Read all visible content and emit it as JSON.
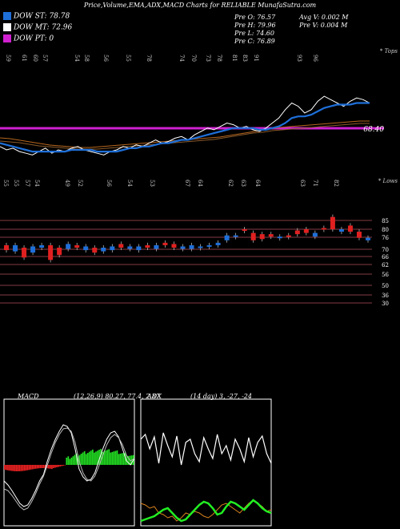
{
  "header": {
    "title": "Price,Volume,EMA,ADX,MACD Charts for RELIABLE MunafaSutra.com"
  },
  "legend": [
    {
      "label": "DOW ST: 78.78",
      "color": "#1e6fd9"
    },
    {
      "label": "DOW MT: 72.96",
      "color": "#ffffff"
    },
    {
      "label": "DOW PT: 0",
      "color": "#d020d0"
    }
  ],
  "ohlc": {
    "open": "Pre   O: 76.57",
    "high": "Pre   H: 79.96",
    "low": "Pre   L: 74.60",
    "close": "Pre   C: 76.89",
    "avg_vol": "Avg V: 0.002  M",
    "pre_vol": "Pre   V: 0.004  M"
  },
  "chart_data": [
    {
      "type": "line",
      "name": "price-ema",
      "title": "",
      "top_label_right": "* Tops",
      "top_labels": [
        "59",
        "61",
        "60",
        "57",
        "54",
        "58",
        "56",
        "55",
        "78",
        "74",
        "70",
        "73",
        "78",
        "81",
        "83",
        "91",
        "93",
        "96"
      ],
      "last_value_label": "68.40",
      "pt_line_value": 68.4,
      "series": [
        {
          "name": "Price",
          "color": "#ffffff",
          "values": [
            58,
            56,
            57,
            55,
            54,
            53,
            55,
            57,
            54,
            56,
            55,
            57,
            58,
            56,
            55,
            54,
            53,
            55,
            56,
            58,
            57,
            59,
            58,
            60,
            62,
            60,
            61,
            63,
            64,
            62,
            65,
            67,
            69,
            68,
            70,
            72,
            71,
            69,
            70,
            68,
            67,
            69,
            72,
            75,
            80,
            84,
            82,
            78,
            80,
            85,
            88,
            86,
            84,
            82,
            85,
            87,
            86,
            84
          ]
        },
        {
          "name": "EMA 5",
          "color": "#1e6fd9",
          "values": [
            60,
            59,
            58,
            57,
            56,
            55,
            55,
            55,
            55,
            55,
            55,
            56,
            56,
            56,
            56,
            55,
            55,
            55,
            55,
            56,
            57,
            57,
            58,
            58,
            59,
            60,
            60,
            61,
            62,
            62,
            63,
            64,
            65,
            66,
            67,
            68,
            69,
            69,
            69,
            69,
            68,
            68,
            69,
            70,
            72,
            75,
            76,
            76,
            77,
            79,
            81,
            82,
            83,
            83,
            83,
            84,
            84,
            84
          ]
        }
      ]
    },
    {
      "type": "bar",
      "name": "candles",
      "bottom_label_right": "* Lows",
      "low_labels": [
        "55",
        "55",
        "57",
        "54",
        "49",
        "52",
        "56",
        "54",
        "53",
        "67",
        "64",
        "62",
        "63",
        "64",
        "63",
        "71",
        "82"
      ],
      "levels": [
        85,
        80,
        76,
        70,
        66,
        62,
        56,
        50,
        36,
        30
      ],
      "candles": [
        {
          "o": 68,
          "c": 72,
          "up": false
        },
        {
          "o": 67,
          "c": 72,
          "up": true
        },
        {
          "o": 70,
          "c": 62,
          "up": false
        },
        {
          "o": 66,
          "c": 71,
          "up": true
        },
        {
          "o": 70,
          "c": 72,
          "up": true
        },
        {
          "o": 72,
          "c": 60,
          "up": false
        },
        {
          "o": 64,
          "c": 70,
          "up": false
        },
        {
          "o": 69,
          "c": 73,
          "up": true
        },
        {
          "o": 72,
          "c": 70,
          "up": false
        },
        {
          "o": 71,
          "c": 68,
          "up": true
        },
        {
          "o": 70,
          "c": 66,
          "up": false
        },
        {
          "o": 67,
          "c": 70,
          "up": true
        },
        {
          "o": 68,
          "c": 71,
          "up": true
        },
        {
          "o": 70,
          "c": 73,
          "up": false
        },
        {
          "o": 71,
          "c": 69,
          "up": true
        },
        {
          "o": 68,
          "c": 71,
          "up": true
        },
        {
          "o": 70,
          "c": 72,
          "up": false
        },
        {
          "o": 72,
          "c": 69,
          "up": true
        },
        {
          "o": 72,
          "c": 74,
          "up": false
        },
        {
          "o": 73,
          "c": 70,
          "up": false
        },
        {
          "o": 71,
          "c": 69,
          "up": true
        },
        {
          "o": 69,
          "c": 72,
          "up": true
        },
        {
          "o": 70,
          "c": 71,
          "up": true
        },
        {
          "o": 72,
          "c": 71,
          "up": true
        },
        {
          "o": 74,
          "c": 72,
          "up": true
        },
        {
          "o": 76,
          "c": 80,
          "up": true
        },
        {
          "o": 80,
          "c": 79,
          "up": true
        },
        {
          "o": 84,
          "c": 85,
          "up": false
        },
        {
          "o": 82,
          "c": 76,
          "up": false
        },
        {
          "o": 77,
          "c": 81,
          "up": false
        },
        {
          "o": 79,
          "c": 81,
          "up": false
        },
        {
          "o": 78,
          "c": 79,
          "up": true
        },
        {
          "o": 80,
          "c": 79,
          "up": false
        },
        {
          "o": 81,
          "c": 84,
          "up": false
        },
        {
          "o": 82,
          "c": 85,
          "up": false
        },
        {
          "o": 79,
          "c": 82,
          "up": true
        },
        {
          "o": 86,
          "c": 85,
          "up": false
        },
        {
          "o": 85,
          "c": 95,
          "up": false
        },
        {
          "o": 85,
          "c": 83,
          "up": true
        },
        {
          "o": 88,
          "c": 83,
          "up": false
        },
        {
          "o": 83,
          "c": 78,
          "up": false
        },
        {
          "o": 78,
          "c": 76,
          "up": true
        }
      ]
    },
    {
      "type": "bar",
      "name": "macd",
      "label": "MACD",
      "params": "(12,26,9) 80.27, 77.4, 2.87"
    },
    {
      "type": "line",
      "name": "adx",
      "label": "ADX",
      "params": "(14 day) 3, -27, -24"
    }
  ]
}
